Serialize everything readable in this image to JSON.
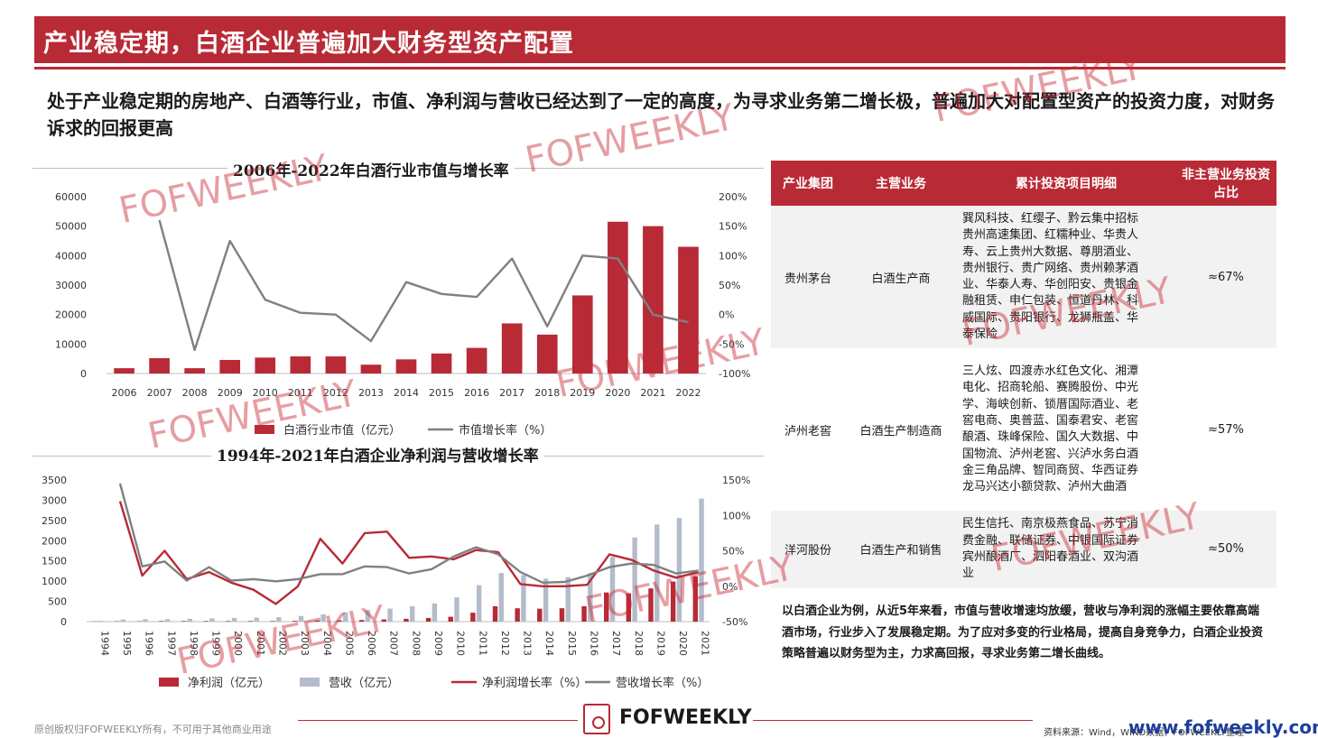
{
  "header": {
    "title": "产业稳定期，白酒企业普遍加大财务型资产配置",
    "subtitle": "处于产业稳定期的房地产、白酒等行业，市值、净利润与营收已经达到了一定的高度，为寻求业务第二增长极，普遍加大对配置型资产的投资力度，对财务诉求的回报更高"
  },
  "chart_data": [
    {
      "type": "bar",
      "title": "2006年-2022年白酒行业市值与增长率",
      "categories": [
        "2006",
        "2007",
        "2008",
        "2009",
        "2010",
        "2011",
        "2012",
        "2013",
        "2014",
        "2015",
        "2016",
        "2017",
        "2018",
        "2019",
        "2020",
        "2021",
        "2022"
      ],
      "series": [
        {
          "name": "白酒行业市值（亿元）",
          "type": "bar",
          "axis": "left",
          "color": "#b82a35",
          "values": [
            1800,
            5200,
            1800,
            4600,
            5400,
            5800,
            5800,
            3000,
            4800,
            6800,
            8700,
            17000,
            13200,
            26500,
            51500,
            50000,
            43000
          ]
        },
        {
          "name": "市值增长率（%）",
          "type": "line",
          "axis": "right",
          "color": "#808080",
          "values": [
            null,
            160,
            -60,
            125,
            25,
            3,
            0,
            -45,
            55,
            35,
            30,
            95,
            -20,
            100,
            95,
            0,
            -13
          ]
        }
      ],
      "yleft": {
        "min": 0,
        "max": 60000,
        "ticks": [
          0,
          10000,
          20000,
          30000,
          40000,
          50000,
          60000
        ]
      },
      "yright": {
        "min": -100,
        "max": 200,
        "ticks": [
          "-100%",
          "-50%",
          "0%",
          "50%",
          "100%",
          "150%",
          "200%"
        ]
      },
      "legend": "bottom"
    },
    {
      "type": "bar",
      "title": "1994年-2021年白酒企业净利润与营收增长率",
      "categories": [
        "1994",
        "1995",
        "1996",
        "1997",
        "1998",
        "1999",
        "2000",
        "2001",
        "2002",
        "2003",
        "2004",
        "2005",
        "2006",
        "2007",
        "2008",
        "2009",
        "2010",
        "2011",
        "2012",
        "2013",
        "2014",
        "2015",
        "2016",
        "2017",
        "2018",
        "2019",
        "2020",
        "2021"
      ],
      "series": [
        {
          "name": "净利润（亿元）",
          "type": "bar",
          "axis": "left",
          "color": "#b82a35",
          "values": [
            5,
            10,
            10,
            15,
            15,
            15,
            15,
            15,
            15,
            20,
            25,
            30,
            40,
            55,
            70,
            90,
            120,
            220,
            380,
            330,
            320,
            330,
            380,
            720,
            700,
            820,
            990,
            1120
          ]
        },
        {
          "name": "营收（亿元）",
          "type": "bar",
          "axis": "left",
          "color": "#b4bccc",
          "values": [
            20,
            50,
            60,
            60,
            70,
            80,
            90,
            100,
            110,
            140,
            180,
            230,
            290,
            320,
            380,
            450,
            600,
            900,
            1200,
            1150,
            1060,
            1100,
            1200,
            1600,
            2080,
            2400,
            2560,
            3040
          ]
        },
        {
          "name": "净利润增长率（%）",
          "type": "line",
          "axis": "right",
          "color": "#b82a35",
          "values": [
            null,
            120,
            15,
            50,
            10,
            20,
            5,
            -5,
            -25,
            0,
            67,
            32,
            75,
            77,
            40,
            42,
            38,
            51,
            48,
            3,
            0,
            0,
            2,
            45,
            37,
            22,
            12,
            20
          ]
        },
        {
          "name": "营收增长率（%）",
          "type": "line",
          "axis": "right",
          "color": "#808080",
          "values": [
            null,
            145,
            28,
            35,
            8,
            27,
            8,
            10,
            7,
            10,
            17,
            17,
            28,
            27,
            18,
            24,
            42,
            55,
            45,
            20,
            5,
            6,
            15,
            27,
            32,
            30,
            18,
            22
          ]
        }
      ],
      "yleft": {
        "min": 0,
        "max": 3500,
        "ticks": [
          0,
          500,
          1000,
          1500,
          2000,
          2500,
          3000,
          3500
        ]
      },
      "yright": {
        "min": -50,
        "max": 150,
        "ticks": [
          "-50%",
          "0%",
          "50%",
          "100%",
          "150%"
        ]
      },
      "legend": "bottom"
    }
  ],
  "table": {
    "headers": [
      "产业集团",
      "主营业务",
      "累计投资项目明细",
      "非主营业务投资占比"
    ],
    "rows": [
      {
        "group": "贵州茅台",
        "business": "白酒生产商",
        "detail": [
          "巽风科技、红缨子、黔云集中招标",
          "贵州高速集团、红糯种业、华贵人",
          "寿、云上贵州大数据、尊朋酒业、",
          "贵州银行、贵广网络、贵州赖茅酒",
          "业、华泰人寿、华创阳安、贵银金",
          "融租赁、申仁包装、恒道丹林、科",
          "威国际、贵阳银行、龙狮瓶盖、华",
          "泰保险"
        ],
        "ratio": "≈67%"
      },
      {
        "group": "泸州老窖",
        "business": "白酒生产制造商",
        "detail": [
          "三人炫、四渡赤水红色文化、湘潭",
          "电化、招商轮船、赛腾股份、中光",
          "学、海峡创新、锁厝国际酒业、老",
          "窖电商、奥普蓝、国泰君安、老窖",
          "酿酒、珠峰保险、国久大数据、中",
          "国物流、泸州老窖、兴泸水务白酒",
          "金三角品牌、智同商贸、华西证券",
          "龙马兴达小额贷款、泸州大曲酒"
        ],
        "ratio": "≈57%"
      },
      {
        "group": "洋河股份",
        "business": "白酒生产和销售",
        "detail": [
          "民生信托、南京极燕食品、苏宁消",
          "费金融、联储证券、中银国际证券",
          "宾州酿酒厂、泗阳春酒业、双沟酒",
          "业"
        ],
        "ratio": "≈50%"
      }
    ]
  },
  "summary": "以白酒企业为例，从近5年来看，市值与营收增速均放缓，营收与净利润的涨幅主要依靠高端酒市场，行业步入了发展稳定期。为了应对多变的行业格局，提高自身竞争力，白酒企业投资策略普遍以财务型为主，力求高回报，寻求业务第二增长曲线。",
  "footer": {
    "copyright": "原创版权归FOFWEEKLY所有，不可用于其他商业用途",
    "brand": "FOFWEEKLY",
    "source": "资料来源：Wind，WIND数据，FOFWEEKLY整理",
    "website": "www.fofweekly.com"
  },
  "watermark": "FOFWEEKLY"
}
